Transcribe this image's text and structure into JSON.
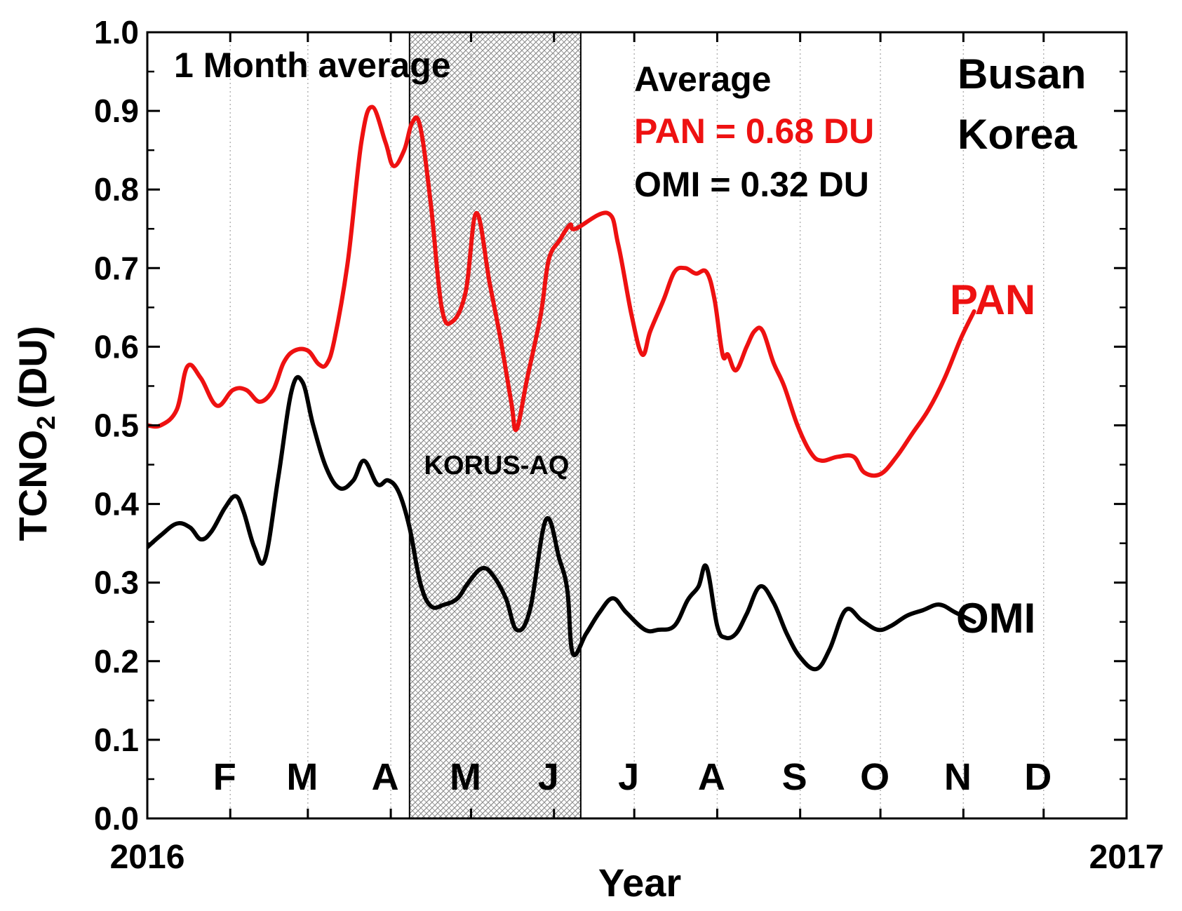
{
  "chart_data": {
    "type": "line",
    "xlabel": "Year",
    "ylabel": "TCNO",
    "ylabel_subscript": "2",
    "ylabel_unit": "(DU)",
    "x_start_label": "2016",
    "x_end_label": "2017",
    "xlim": [
      "2016-01-01",
      "2017-01-01"
    ],
    "ylim": [
      0.0,
      1.0
    ],
    "ytick_labels": [
      "0.0",
      "0.1",
      "0.2",
      "0.3",
      "0.4",
      "0.5",
      "0.6",
      "0.7",
      "0.8",
      "0.9",
      "1.0"
    ],
    "months": [
      "F",
      "M",
      "A",
      "M",
      "J",
      "J",
      "A",
      "S",
      "O",
      "N",
      "D"
    ],
    "grid": "vertical dotted lines at month boundaries",
    "annotations": {
      "period": "1 Month average",
      "average_title": "Average",
      "average_pan": "PAN = 0.68 DU",
      "average_omi": "OMI = 0.32 DU",
      "location_line1": "Busan",
      "location_line2": "Korea",
      "shaded_label": "KORUS-AQ"
    },
    "shaded_region": {
      "start": "2016-04-08",
      "end": "2016-06-11",
      "label": "KORUS-AQ"
    },
    "series": [
      {
        "name": "PAN",
        "color": "#ee1111",
        "points": [
          [
            "2016-01-01",
            0.5
          ],
          [
            "2016-01-06",
            0.5
          ],
          [
            "2016-01-12",
            0.52
          ],
          [
            "2016-01-16",
            0.575
          ],
          [
            "2016-01-21",
            0.56
          ],
          [
            "2016-01-27",
            0.525
          ],
          [
            "2016-02-02",
            0.545
          ],
          [
            "2016-02-07",
            0.545
          ],
          [
            "2016-02-12",
            0.53
          ],
          [
            "2016-02-17",
            0.545
          ],
          [
            "2016-02-21",
            0.58
          ],
          [
            "2016-02-25",
            0.595
          ],
          [
            "2016-03-01",
            0.595
          ],
          [
            "2016-03-05",
            0.578
          ],
          [
            "2016-03-08",
            0.578
          ],
          [
            "2016-03-11",
            0.61
          ],
          [
            "2016-03-16",
            0.71
          ],
          [
            "2016-03-21",
            0.86
          ],
          [
            "2016-03-25",
            0.905
          ],
          [
            "2016-03-30",
            0.86
          ],
          [
            "2016-04-02",
            0.83
          ],
          [
            "2016-04-06",
            0.85
          ],
          [
            "2016-04-09",
            0.885
          ],
          [
            "2016-04-12",
            0.88
          ],
          [
            "2016-04-16",
            0.78
          ],
          [
            "2016-04-20",
            0.65
          ],
          [
            "2016-04-24",
            0.632
          ],
          [
            "2016-04-29",
            0.67
          ],
          [
            "2016-05-03",
            0.77
          ],
          [
            "2016-05-08",
            0.68
          ],
          [
            "2016-05-12",
            0.61
          ],
          [
            "2016-05-16",
            0.53
          ],
          [
            "2016-05-18",
            0.495
          ],
          [
            "2016-05-22",
            0.56
          ],
          [
            "2016-05-27",
            0.64
          ],
          [
            "2016-05-30",
            0.71
          ],
          [
            "2016-06-03",
            0.735
          ],
          [
            "2016-06-07",
            0.755
          ],
          [
            "2016-06-09",
            0.75
          ],
          [
            "2016-06-21",
            0.77
          ],
          [
            "2016-06-25",
            0.73
          ],
          [
            "2016-06-30",
            0.64
          ],
          [
            "2016-07-04",
            0.59
          ],
          [
            "2016-07-07",
            0.62
          ],
          [
            "2016-07-12",
            0.66
          ],
          [
            "2016-07-16",
            0.695
          ],
          [
            "2016-07-20",
            0.7
          ],
          [
            "2016-07-24",
            0.693
          ],
          [
            "2016-07-28",
            0.695
          ],
          [
            "2016-07-31",
            0.66
          ],
          [
            "2016-08-03",
            0.59
          ],
          [
            "2016-08-05",
            0.59
          ],
          [
            "2016-08-08",
            0.57
          ],
          [
            "2016-08-12",
            0.6
          ],
          [
            "2016-08-15",
            0.62
          ],
          [
            "2016-08-18",
            0.62
          ],
          [
            "2016-08-22",
            0.58
          ],
          [
            "2016-08-26",
            0.55
          ],
          [
            "2016-08-31",
            0.5
          ],
          [
            "2016-09-05",
            0.465
          ],
          [
            "2016-09-09",
            0.455
          ],
          [
            "2016-09-15",
            0.46
          ],
          [
            "2016-09-21",
            0.46
          ],
          [
            "2016-09-25",
            0.44
          ],
          [
            "2016-10-01",
            0.438
          ],
          [
            "2016-10-07",
            0.46
          ],
          [
            "2016-10-13",
            0.49
          ],
          [
            "2016-10-19",
            0.52
          ],
          [
            "2016-10-25",
            0.56
          ],
          [
            "2016-10-31",
            0.61
          ],
          [
            "2016-11-05",
            0.645
          ]
        ]
      },
      {
        "name": "OMI",
        "color": "#000000",
        "points": [
          [
            "2016-01-01",
            0.345
          ],
          [
            "2016-01-06",
            0.36
          ],
          [
            "2016-01-12",
            0.375
          ],
          [
            "2016-01-17",
            0.37
          ],
          [
            "2016-01-21",
            0.355
          ],
          [
            "2016-01-25",
            0.365
          ],
          [
            "2016-01-30",
            0.395
          ],
          [
            "2016-02-03",
            0.41
          ],
          [
            "2016-02-06",
            0.39
          ],
          [
            "2016-02-10",
            0.345
          ],
          [
            "2016-02-14",
            0.33
          ],
          [
            "2016-02-19",
            0.435
          ],
          [
            "2016-02-24",
            0.545
          ],
          [
            "2016-02-28",
            0.555
          ],
          [
            "2016-03-03",
            0.5
          ],
          [
            "2016-03-08",
            0.445
          ],
          [
            "2016-03-13",
            0.42
          ],
          [
            "2016-03-18",
            0.43
          ],
          [
            "2016-03-22",
            0.455
          ],
          [
            "2016-03-27",
            0.425
          ],
          [
            "2016-03-31",
            0.43
          ],
          [
            "2016-04-04",
            0.415
          ],
          [
            "2016-04-08",
            0.37
          ],
          [
            "2016-04-12",
            0.3
          ],
          [
            "2016-04-16",
            0.27
          ],
          [
            "2016-04-21",
            0.272
          ],
          [
            "2016-04-26",
            0.28
          ],
          [
            "2016-04-30",
            0.3
          ],
          [
            "2016-05-05",
            0.318
          ],
          [
            "2016-05-09",
            0.31
          ],
          [
            "2016-05-14",
            0.28
          ],
          [
            "2016-05-18",
            0.24
          ],
          [
            "2016-05-23",
            0.265
          ],
          [
            "2016-05-29",
            0.38
          ],
          [
            "2016-06-03",
            0.33
          ],
          [
            "2016-06-06",
            0.29
          ],
          [
            "2016-06-08",
            0.21
          ],
          [
            "2016-06-13",
            0.235
          ],
          [
            "2016-06-18",
            0.262
          ],
          [
            "2016-06-23",
            0.28
          ],
          [
            "2016-06-28",
            0.262
          ],
          [
            "2016-07-05",
            0.24
          ],
          [
            "2016-07-10",
            0.24
          ],
          [
            "2016-07-16",
            0.245
          ],
          [
            "2016-07-21",
            0.278
          ],
          [
            "2016-07-25",
            0.295
          ],
          [
            "2016-07-28",
            0.32
          ],
          [
            "2016-08-01",
            0.245
          ],
          [
            "2016-08-04",
            0.23
          ],
          [
            "2016-08-08",
            0.235
          ],
          [
            "2016-08-12",
            0.26
          ],
          [
            "2016-08-17",
            0.295
          ],
          [
            "2016-08-22",
            0.275
          ],
          [
            "2016-08-27",
            0.235
          ],
          [
            "2016-09-01",
            0.205
          ],
          [
            "2016-09-07",
            0.19
          ],
          [
            "2016-09-12",
            0.215
          ],
          [
            "2016-09-18",
            0.265
          ],
          [
            "2016-09-24",
            0.252
          ],
          [
            "2016-09-30",
            0.24
          ],
          [
            "2016-10-05",
            0.245
          ],
          [
            "2016-10-11",
            0.258
          ],
          [
            "2016-10-17",
            0.265
          ],
          [
            "2016-10-23",
            0.272
          ],
          [
            "2016-10-29",
            0.262
          ],
          [
            "2016-11-05",
            0.25
          ]
        ]
      }
    ]
  }
}
